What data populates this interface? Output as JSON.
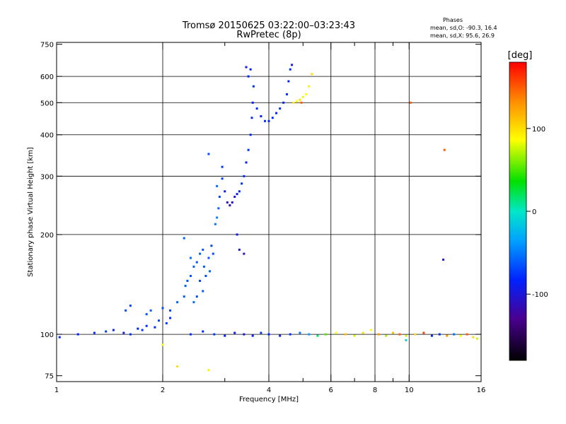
{
  "chart_data": {
    "type": "scatter",
    "title": "Tromsø 20150625 03:22:00–03:23:43",
    "subtitle": "RwPretec (8p)",
    "xlabel": "Frequency [MHz]",
    "ylabel": "Stationary phase Virtual Height [km]",
    "x_scale": "log",
    "y_scale": "log",
    "xlim": [
      1,
      16
    ],
    "ylim": [
      72,
      760
    ],
    "x_ticks": [
      1,
      2,
      4,
      6,
      8,
      10,
      16
    ],
    "x_tick_labels": [
      "1",
      "2",
      "4",
      "6",
      "8",
      "10",
      "16"
    ],
    "x_minor_ticks": [
      3,
      5,
      7,
      9
    ],
    "y_ticks": [
      75,
      100,
      200,
      300,
      400,
      500,
      600,
      750
    ],
    "y_tick_labels": [
      "75",
      "100",
      "200",
      "300",
      "400",
      "500",
      "600",
      "750"
    ],
    "grid": true,
    "phases": {
      "title": "Phases",
      "line_o": "mean, sd,O: -90.3, 16.4",
      "line_x": "mean, sd,X:  95.6, 26.9"
    },
    "colorbar": {
      "label": "[deg]",
      "range": [
        -180,
        180
      ],
      "ticks": [
        100,
        0,
        -100
      ],
      "tick_labels": [
        "100",
        "0",
        "-100"
      ]
    },
    "series": [
      {
        "values": [
          {
            "x": 1.02,
            "y": 98,
            "p": -95
          },
          {
            "x": 1.15,
            "y": 100,
            "p": -100
          },
          {
            "x": 1.28,
            "y": 101,
            "p": -95
          },
          {
            "x": 1.38,
            "y": 102,
            "p": -90
          },
          {
            "x": 1.45,
            "y": 103,
            "p": -100
          },
          {
            "x": 1.55,
            "y": 101,
            "p": -105
          },
          {
            "x": 1.62,
            "y": 100,
            "p": -95
          },
          {
            "x": 1.7,
            "y": 104,
            "p": -100
          },
          {
            "x": 1.75,
            "y": 103,
            "p": -90
          },
          {
            "x": 1.8,
            "y": 106,
            "p": -95
          },
          {
            "x": 1.9,
            "y": 105,
            "p": -100
          },
          {
            "x": 1.95,
            "y": 110,
            "p": -85
          },
          {
            "x": 2.05,
            "y": 108,
            "p": -90
          },
          {
            "x": 2.1,
            "y": 112,
            "p": -95
          },
          {
            "x": 1.57,
            "y": 118,
            "p": -80
          },
          {
            "x": 1.62,
            "y": 122,
            "p": -85
          },
          {
            "x": 1.8,
            "y": 115,
            "p": -75
          },
          {
            "x": 1.85,
            "y": 118,
            "p": -70
          },
          {
            "x": 2.0,
            "y": 120,
            "p": -80
          },
          {
            "x": 2.2,
            "y": 125,
            "p": -70
          },
          {
            "x": 2.1,
            "y": 118,
            "p": -85
          },
          {
            "x": 2.3,
            "y": 130,
            "p": -75
          },
          {
            "x": 2.32,
            "y": 140,
            "p": -70
          },
          {
            "x": 2.35,
            "y": 145,
            "p": -80
          },
          {
            "x": 2.4,
            "y": 150,
            "p": -75
          },
          {
            "x": 2.45,
            "y": 160,
            "p": -70
          },
          {
            "x": 2.4,
            "y": 170,
            "p": -65
          },
          {
            "x": 2.5,
            "y": 165,
            "p": -75
          },
          {
            "x": 2.55,
            "y": 175,
            "p": -70
          },
          {
            "x": 2.6,
            "y": 180,
            "p": -80
          },
          {
            "x": 2.62,
            "y": 160,
            "p": -75
          },
          {
            "x": 2.55,
            "y": 145,
            "p": -85
          },
          {
            "x": 2.65,
            "y": 150,
            "p": -80
          },
          {
            "x": 2.7,
            "y": 170,
            "p": -75
          },
          {
            "x": 2.72,
            "y": 155,
            "p": -70
          },
          {
            "x": 2.5,
            "y": 130,
            "p": -80
          },
          {
            "x": 2.6,
            "y": 135,
            "p": -75
          },
          {
            "x": 2.45,
            "y": 125,
            "p": -65
          },
          {
            "x": 2.75,
            "y": 185,
            "p": -85
          },
          {
            "x": 2.78,
            "y": 175,
            "p": -80
          },
          {
            "x": 2.3,
            "y": 195,
            "p": -70
          },
          {
            "x": 2.82,
            "y": 215,
            "p": -60
          },
          {
            "x": 2.85,
            "y": 225,
            "p": -55
          },
          {
            "x": 2.88,
            "y": 240,
            "p": -70
          },
          {
            "x": 2.9,
            "y": 260,
            "p": -80
          },
          {
            "x": 2.85,
            "y": 280,
            "p": -65
          },
          {
            "x": 2.95,
            "y": 295,
            "p": -90
          },
          {
            "x": 3.0,
            "y": 270,
            "p": -110
          },
          {
            "x": 3.05,
            "y": 250,
            "p": -115
          },
          {
            "x": 3.1,
            "y": 245,
            "p": -120
          },
          {
            "x": 3.15,
            "y": 250,
            "p": -115
          },
          {
            "x": 3.2,
            "y": 260,
            "p": -110
          },
          {
            "x": 3.25,
            "y": 265,
            "p": -105
          },
          {
            "x": 3.3,
            "y": 270,
            "p": -100
          },
          {
            "x": 3.35,
            "y": 285,
            "p": -95
          },
          {
            "x": 3.4,
            "y": 300,
            "p": -95
          },
          {
            "x": 3.45,
            "y": 330,
            "p": -100
          },
          {
            "x": 3.5,
            "y": 360,
            "p": -95
          },
          {
            "x": 3.55,
            "y": 400,
            "p": -100
          },
          {
            "x": 3.58,
            "y": 450,
            "p": -95
          },
          {
            "x": 3.6,
            "y": 500,
            "p": -100
          },
          {
            "x": 3.62,
            "y": 560,
            "p": -95
          },
          {
            "x": 3.5,
            "y": 600,
            "p": -100
          },
          {
            "x": 3.45,
            "y": 640,
            "p": -105
          },
          {
            "x": 3.55,
            "y": 630,
            "p": -100
          },
          {
            "x": 3.7,
            "y": 480,
            "p": -95
          },
          {
            "x": 3.8,
            "y": 455,
            "p": -100
          },
          {
            "x": 3.9,
            "y": 440,
            "p": -95
          },
          {
            "x": 4.0,
            "y": 440,
            "p": -100
          },
          {
            "x": 4.1,
            "y": 450,
            "p": -95
          },
          {
            "x": 4.2,
            "y": 465,
            "p": -100
          },
          {
            "x": 4.3,
            "y": 480,
            "p": -95
          },
          {
            "x": 4.4,
            "y": 500,
            "p": -100
          },
          {
            "x": 4.5,
            "y": 530,
            "p": -95
          },
          {
            "x": 4.55,
            "y": 580,
            "p": -100
          },
          {
            "x": 4.6,
            "y": 630,
            "p": -95
          },
          {
            "x": 4.65,
            "y": 650,
            "p": -105
          },
          {
            "x": 4.7,
            "y": 500,
            "p": 105
          },
          {
            "x": 4.8,
            "y": 505,
            "p": 100
          },
          {
            "x": 4.9,
            "y": 510,
            "p": 110
          },
          {
            "x": 5.0,
            "y": 520,
            "p": 95
          },
          {
            "x": 5.1,
            "y": 530,
            "p": 100
          },
          {
            "x": 5.2,
            "y": 560,
            "p": 105
          },
          {
            "x": 5.3,
            "y": 610,
            "p": 110
          },
          {
            "x": 4.95,
            "y": 500,
            "p": 150
          },
          {
            "x": 3.3,
            "y": 180,
            "p": -110
          },
          {
            "x": 3.4,
            "y": 175,
            "p": -115
          },
          {
            "x": 3.25,
            "y": 200,
            "p": -105
          },
          {
            "x": 2.7,
            "y": 350,
            "p": -80
          },
          {
            "x": 2.95,
            "y": 320,
            "p": -90
          },
          {
            "x": 2.2,
            "y": 80,
            "p": 110
          },
          {
            "x": 2.7,
            "y": 78,
            "p": 105
          },
          {
            "x": 2.0,
            "y": 93,
            "p": 100
          },
          {
            "x": 2.4,
            "y": 100,
            "p": -95
          },
          {
            "x": 2.6,
            "y": 102,
            "p": -100
          },
          {
            "x": 2.8,
            "y": 100,
            "p": -90
          },
          {
            "x": 3.0,
            "y": 99,
            "p": -100
          },
          {
            "x": 3.2,
            "y": 101,
            "p": -105
          },
          {
            "x": 3.4,
            "y": 100,
            "p": -110
          },
          {
            "x": 3.6,
            "y": 99,
            "p": -100
          },
          {
            "x": 3.8,
            "y": 101,
            "p": -95
          },
          {
            "x": 4.0,
            "y": 100,
            "p": -100
          },
          {
            "x": 4.3,
            "y": 99,
            "p": -105
          },
          {
            "x": 4.6,
            "y": 100,
            "p": -95
          },
          {
            "x": 4.9,
            "y": 101,
            "p": -60
          },
          {
            "x": 5.2,
            "y": 100,
            "p": -40
          },
          {
            "x": 5.5,
            "y": 99,
            "p": 20
          },
          {
            "x": 5.8,
            "y": 100,
            "p": 60
          },
          {
            "x": 6.2,
            "y": 101,
            "p": 100
          },
          {
            "x": 6.6,
            "y": 100,
            "p": 120
          },
          {
            "x": 7.0,
            "y": 99,
            "p": 90
          },
          {
            "x": 7.4,
            "y": 101,
            "p": 110
          },
          {
            "x": 7.8,
            "y": 103,
            "p": 100
          },
          {
            "x": 8.2,
            "y": 100,
            "p": 130
          },
          {
            "x": 8.6,
            "y": 99,
            "p": 80
          },
          {
            "x": 9.0,
            "y": 101,
            "p": 120
          },
          {
            "x": 9.4,
            "y": 100,
            "p": 150
          },
          {
            "x": 9.8,
            "y": 99,
            "p": 90
          },
          {
            "x": 10.4,
            "y": 100,
            "p": 110
          },
          {
            "x": 11.0,
            "y": 101,
            "p": 160
          },
          {
            "x": 11.6,
            "y": 99,
            "p": -100
          },
          {
            "x": 12.2,
            "y": 100,
            "p": -95
          },
          {
            "x": 12.8,
            "y": 99,
            "p": 130
          },
          {
            "x": 13.4,
            "y": 100,
            "p": -60
          },
          {
            "x": 14.0,
            "y": 99,
            "p": 100
          },
          {
            "x": 14.6,
            "y": 100,
            "p": 150
          },
          {
            "x": 15.2,
            "y": 98,
            "p": 110
          },
          {
            "x": 15.6,
            "y": 97,
            "p": 90
          },
          {
            "x": 9.8,
            "y": 96,
            "p": -10
          },
          {
            "x": 10.1,
            "y": 500,
            "p": 150
          },
          {
            "x": 12.6,
            "y": 360,
            "p": 150
          },
          {
            "x": 12.5,
            "y": 168,
            "p": -110
          }
        ]
      }
    ]
  }
}
